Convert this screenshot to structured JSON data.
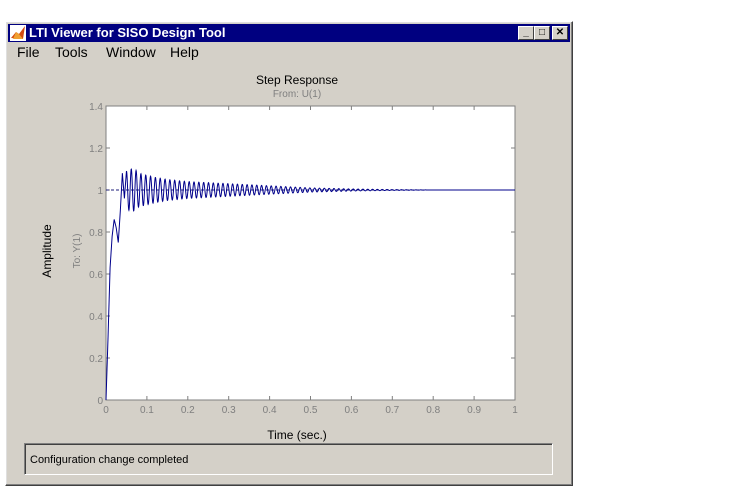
{
  "window": {
    "title": "LTI Viewer for SISO Design Tool",
    "minimize_glyph": "_",
    "maximize_glyph": "□",
    "close_glyph": "✕"
  },
  "menu": {
    "items": [
      {
        "label": "File"
      },
      {
        "label": "Tools"
      },
      {
        "label": "Window"
      },
      {
        "label": "Help"
      }
    ]
  },
  "plot": {
    "title": "Step Response",
    "subtitle": "From: U(1)",
    "xlabel": "Time (sec.)",
    "ylabel": "Amplitude",
    "channel_label": "To: Y(1)",
    "line_color": "#00008b",
    "steady_state_color": "#1e1e78"
  },
  "chart_data": {
    "type": "line",
    "title": "Step Response",
    "subtitle": "From: U(1)",
    "xlabel": "Time (sec.)",
    "ylabel": "Amplitude",
    "xlim": [
      0,
      1
    ],
    "ylim": [
      0,
      1.4
    ],
    "xticks": [
      "0",
      "0.1",
      "0.2",
      "0.3",
      "0.4",
      "0.5",
      "0.6",
      "0.7",
      "0.8",
      "0.9",
      "1"
    ],
    "yticks": [
      "0",
      "0.2",
      "0.4",
      "0.6",
      "0.8",
      "1",
      "1.2",
      "1.4"
    ],
    "grid": false,
    "steady_state_value": 1.0,
    "series": [
      {
        "x": [
          0,
          0.005,
          0.01,
          0.015,
          0.02,
          0.025,
          0.03,
          0.035,
          0.04,
          0.045,
          0.05,
          0.06,
          0.07,
          0.08,
          0.1,
          0.12,
          0.15,
          0.2,
          0.3,
          0.4,
          0.5,
          0.6,
          0.7,
          0.8
        ],
        "y": [
          0,
          0.3,
          0.63,
          0.78,
          0.86,
          0.82,
          0.75,
          0.9,
          1.08,
          0.96,
          1.09,
          1.1,
          1.1,
          1.08,
          1.07,
          1.06,
          1.05,
          1.04,
          1.03,
          1.02,
          1.01,
          1.005,
          1.002,
          1.0
        ]
      }
    ]
  },
  "status": {
    "text": "Configuration change completed"
  }
}
